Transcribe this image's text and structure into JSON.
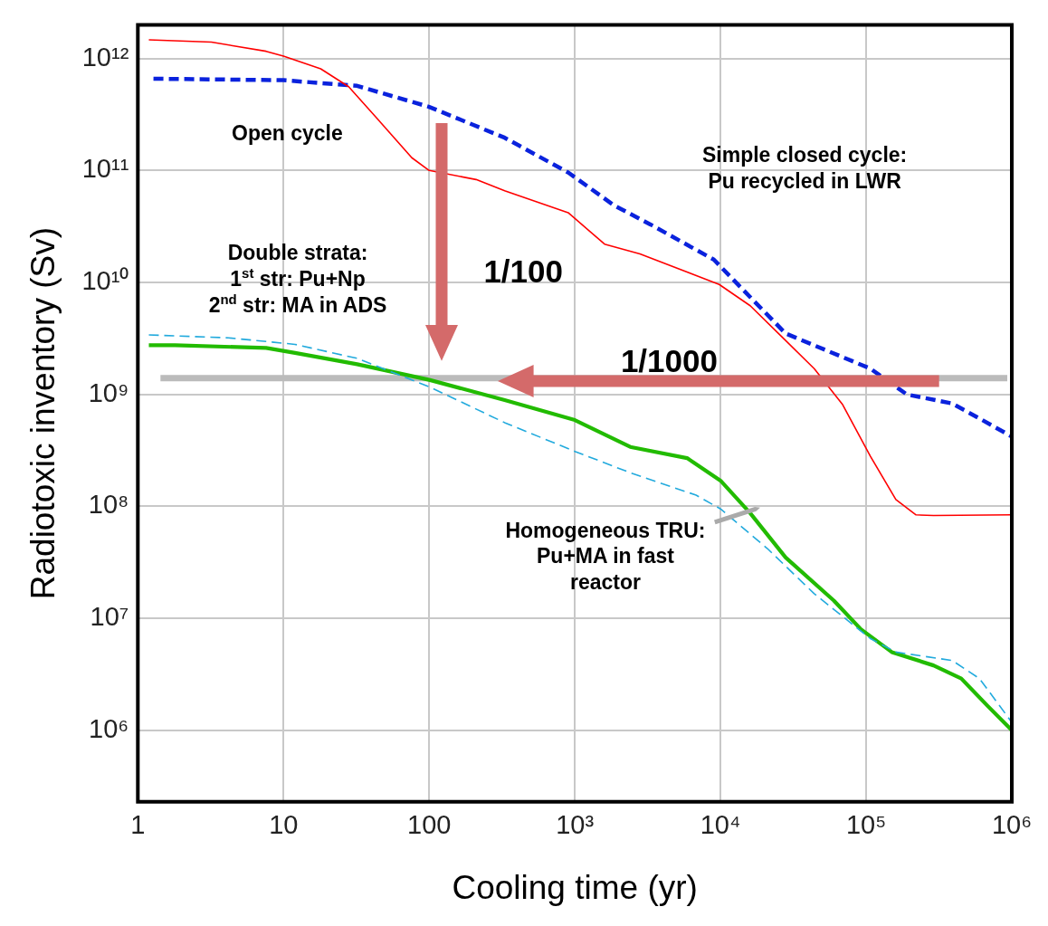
{
  "chart_data": {
    "type": "line",
    "xlabel": "Cooling time (yr)",
    "ylabel": "Radiotoxic inventory (Sv)",
    "log": "xy",
    "grid": true,
    "legend": false,
    "marker": "none",
    "xlim": [
      1,
      1000000
    ],
    "ylim": [
      230000,
      2000000000000
    ],
    "xticks": [
      1,
      10,
      100,
      {
        "value": 1000,
        "label": "10³"
      },
      {
        "value": 10000,
        "label": "10⁴"
      },
      {
        "value": 100000,
        "label": "10⁵"
      },
      {
        "value": 1000000,
        "label": "10⁶"
      }
    ],
    "yticks": [
      {
        "value": 1000000,
        "label": "10⁶"
      },
      {
        "value": 10000000,
        "label": "10⁷"
      },
      {
        "value": 100000000,
        "label": "10⁸"
      },
      {
        "value": 1000000000,
        "label": "10⁹"
      },
      {
        "value": 10000000000,
        "label": "10¹⁰"
      },
      {
        "value": 100000000000,
        "label": "10¹¹"
      },
      {
        "value": 1000000000000,
        "label": "10¹²"
      }
    ],
    "series": [
      {
        "name": "Open cycle",
        "color": "#ff0000",
        "line_style": "solid",
        "x": [
          1.19,
          3.2,
          7.6,
          10,
          18,
          28,
          43,
          76,
          100,
          210,
          330,
          900,
          1600,
          2800,
          9800,
          16000,
          25000,
          44000,
          69000,
          107000,
          160000,
          220000,
          290000,
          1000000
        ],
        "values": [
          1470000000000,
          1400000000000,
          1160000000000,
          1050000000000,
          810000000000,
          560000000000,
          300000000000,
          130000000000,
          100000000000,
          83000000000,
          66000000000,
          42000000000,
          22000000000,
          18000000000,
          9600000000,
          6200000000,
          3500000000,
          1700000000,
          810000000,
          280000000,
          115000000,
          84000000,
          83000000,
          84000000
        ]
      },
      {
        "name": "Simple closed cycle:\nPu recycled in LWR",
        "color": "#0a22dd",
        "line_style": "dashed",
        "x": [
          1.28,
          10,
          32,
          100,
          330,
          900,
          1850,
          3300,
          9000,
          16000,
          28000,
          107000,
          190000,
          390000,
          600000,
          1000000
        ],
        "values": [
          660000000000,
          640000000000,
          570000000000,
          370000000000,
          196000000000,
          96000000000,
          49000000000,
          33000000000,
          16000000000,
          7400000000,
          3500000000,
          1700000000,
          1000000000,
          830000000,
          610000000,
          420000000
        ]
      },
      {
        "name": "Double strata:\n1$^{st}$ str: Pu+Np\n2$^{nd}$ str: MA in ADS",
        "color": "#22aadd",
        "line_style": "dashed",
        "x": [
          1.19,
          4.2,
          12,
          32,
          100,
          330,
          1000,
          2400,
          6800,
          10000,
          21000,
          44000,
          107000,
          160000,
          390000,
          600000,
          1000000
        ],
        "values": [
          3400000000,
          3200000000,
          2800000000,
          2100000000,
          1170000000,
          560000000,
          310000000,
          200000000,
          126000000,
          95000000,
          42000000,
          16600000,
          6600000,
          5000000,
          4200000,
          2900000,
          1180000
        ]
      },
      {
        "name": "Homogeneous TRU:\nPu+MA in fast\nreactor",
        "color": "#22bb00",
        "line_style": "solid",
        "x": [
          1.19,
          1.8,
          7.6,
          12,
          32,
          100,
          330,
          1000,
          2400,
          5900,
          10000,
          16000,
          28000,
          60000,
          92000,
          150000,
          290000,
          450000,
          680000,
          1000000
        ],
        "values": [
          2750000000,
          2750000000,
          2600000000,
          2350000000,
          1860000000,
          1350000000,
          890000000,
          590000000,
          340000000,
          270000000,
          170000000,
          87000000,
          35000000,
          14400000,
          8000000,
          5000000,
          3800000,
          2900000,
          1660000,
          1000000
        ]
      }
    ],
    "ref_lines": [
      {
        "axis": "y",
        "value": 1400000000,
        "color": "#bbbbbb"
      }
    ],
    "annotations": [
      "1/100",
      "1/1000"
    ]
  }
}
